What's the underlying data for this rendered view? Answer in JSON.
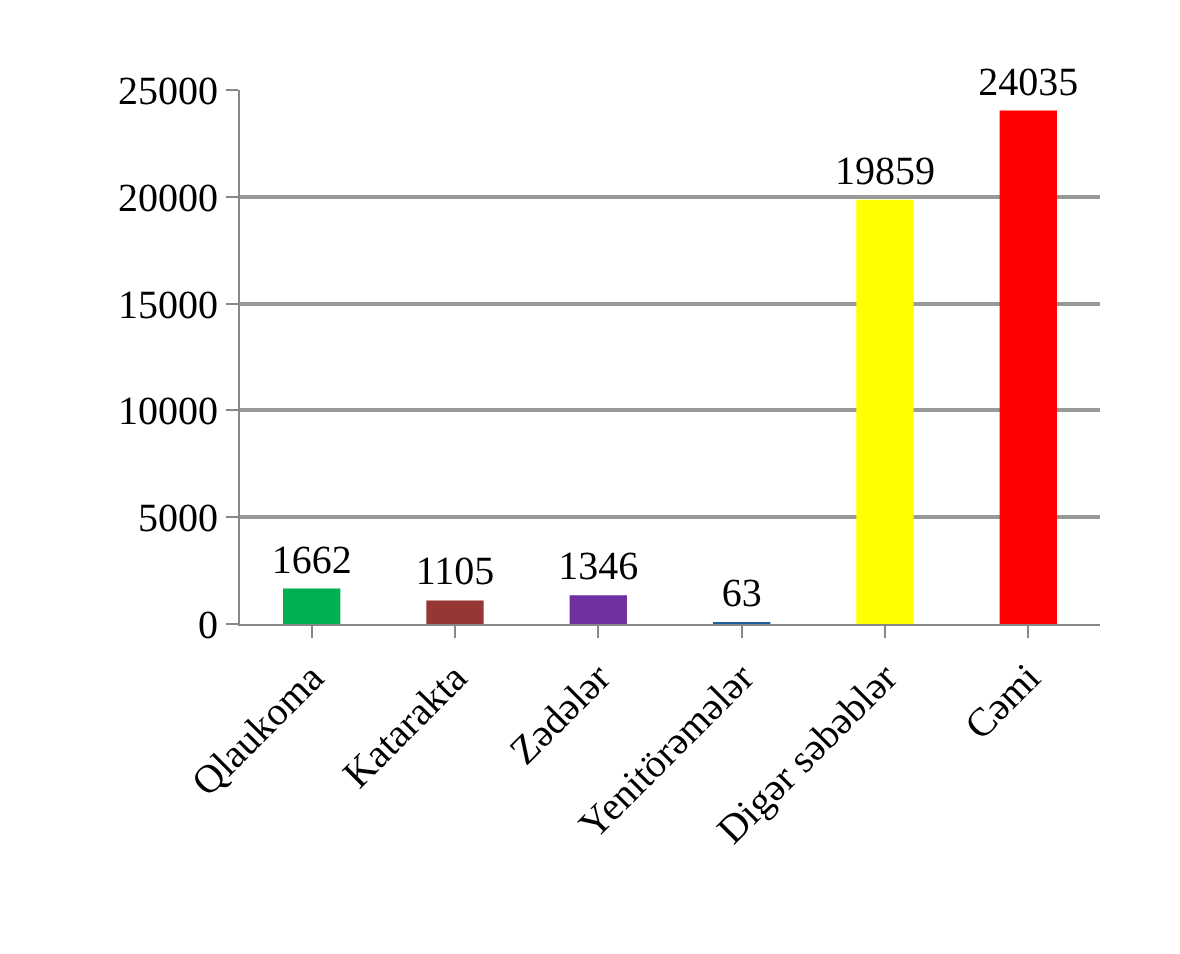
{
  "chart_data": {
    "type": "bar",
    "categories": [
      "Qlaukoma",
      "Katarakta",
      "Zədələr",
      "Yenitörəmələr",
      "Digər səbəblər",
      "Cəmi"
    ],
    "values": [
      1662,
      1105,
      1346,
      63,
      19859,
      24035
    ],
    "colors": [
      "#00b050",
      "#953735",
      "#7030a0",
      "#1f5fa0",
      "#ffff00",
      "#ff0000"
    ],
    "ylim": [
      0,
      25000
    ],
    "yticks": [
      0,
      5000,
      10000,
      15000,
      20000,
      25000
    ],
    "grid": "y",
    "data_labels": true
  }
}
